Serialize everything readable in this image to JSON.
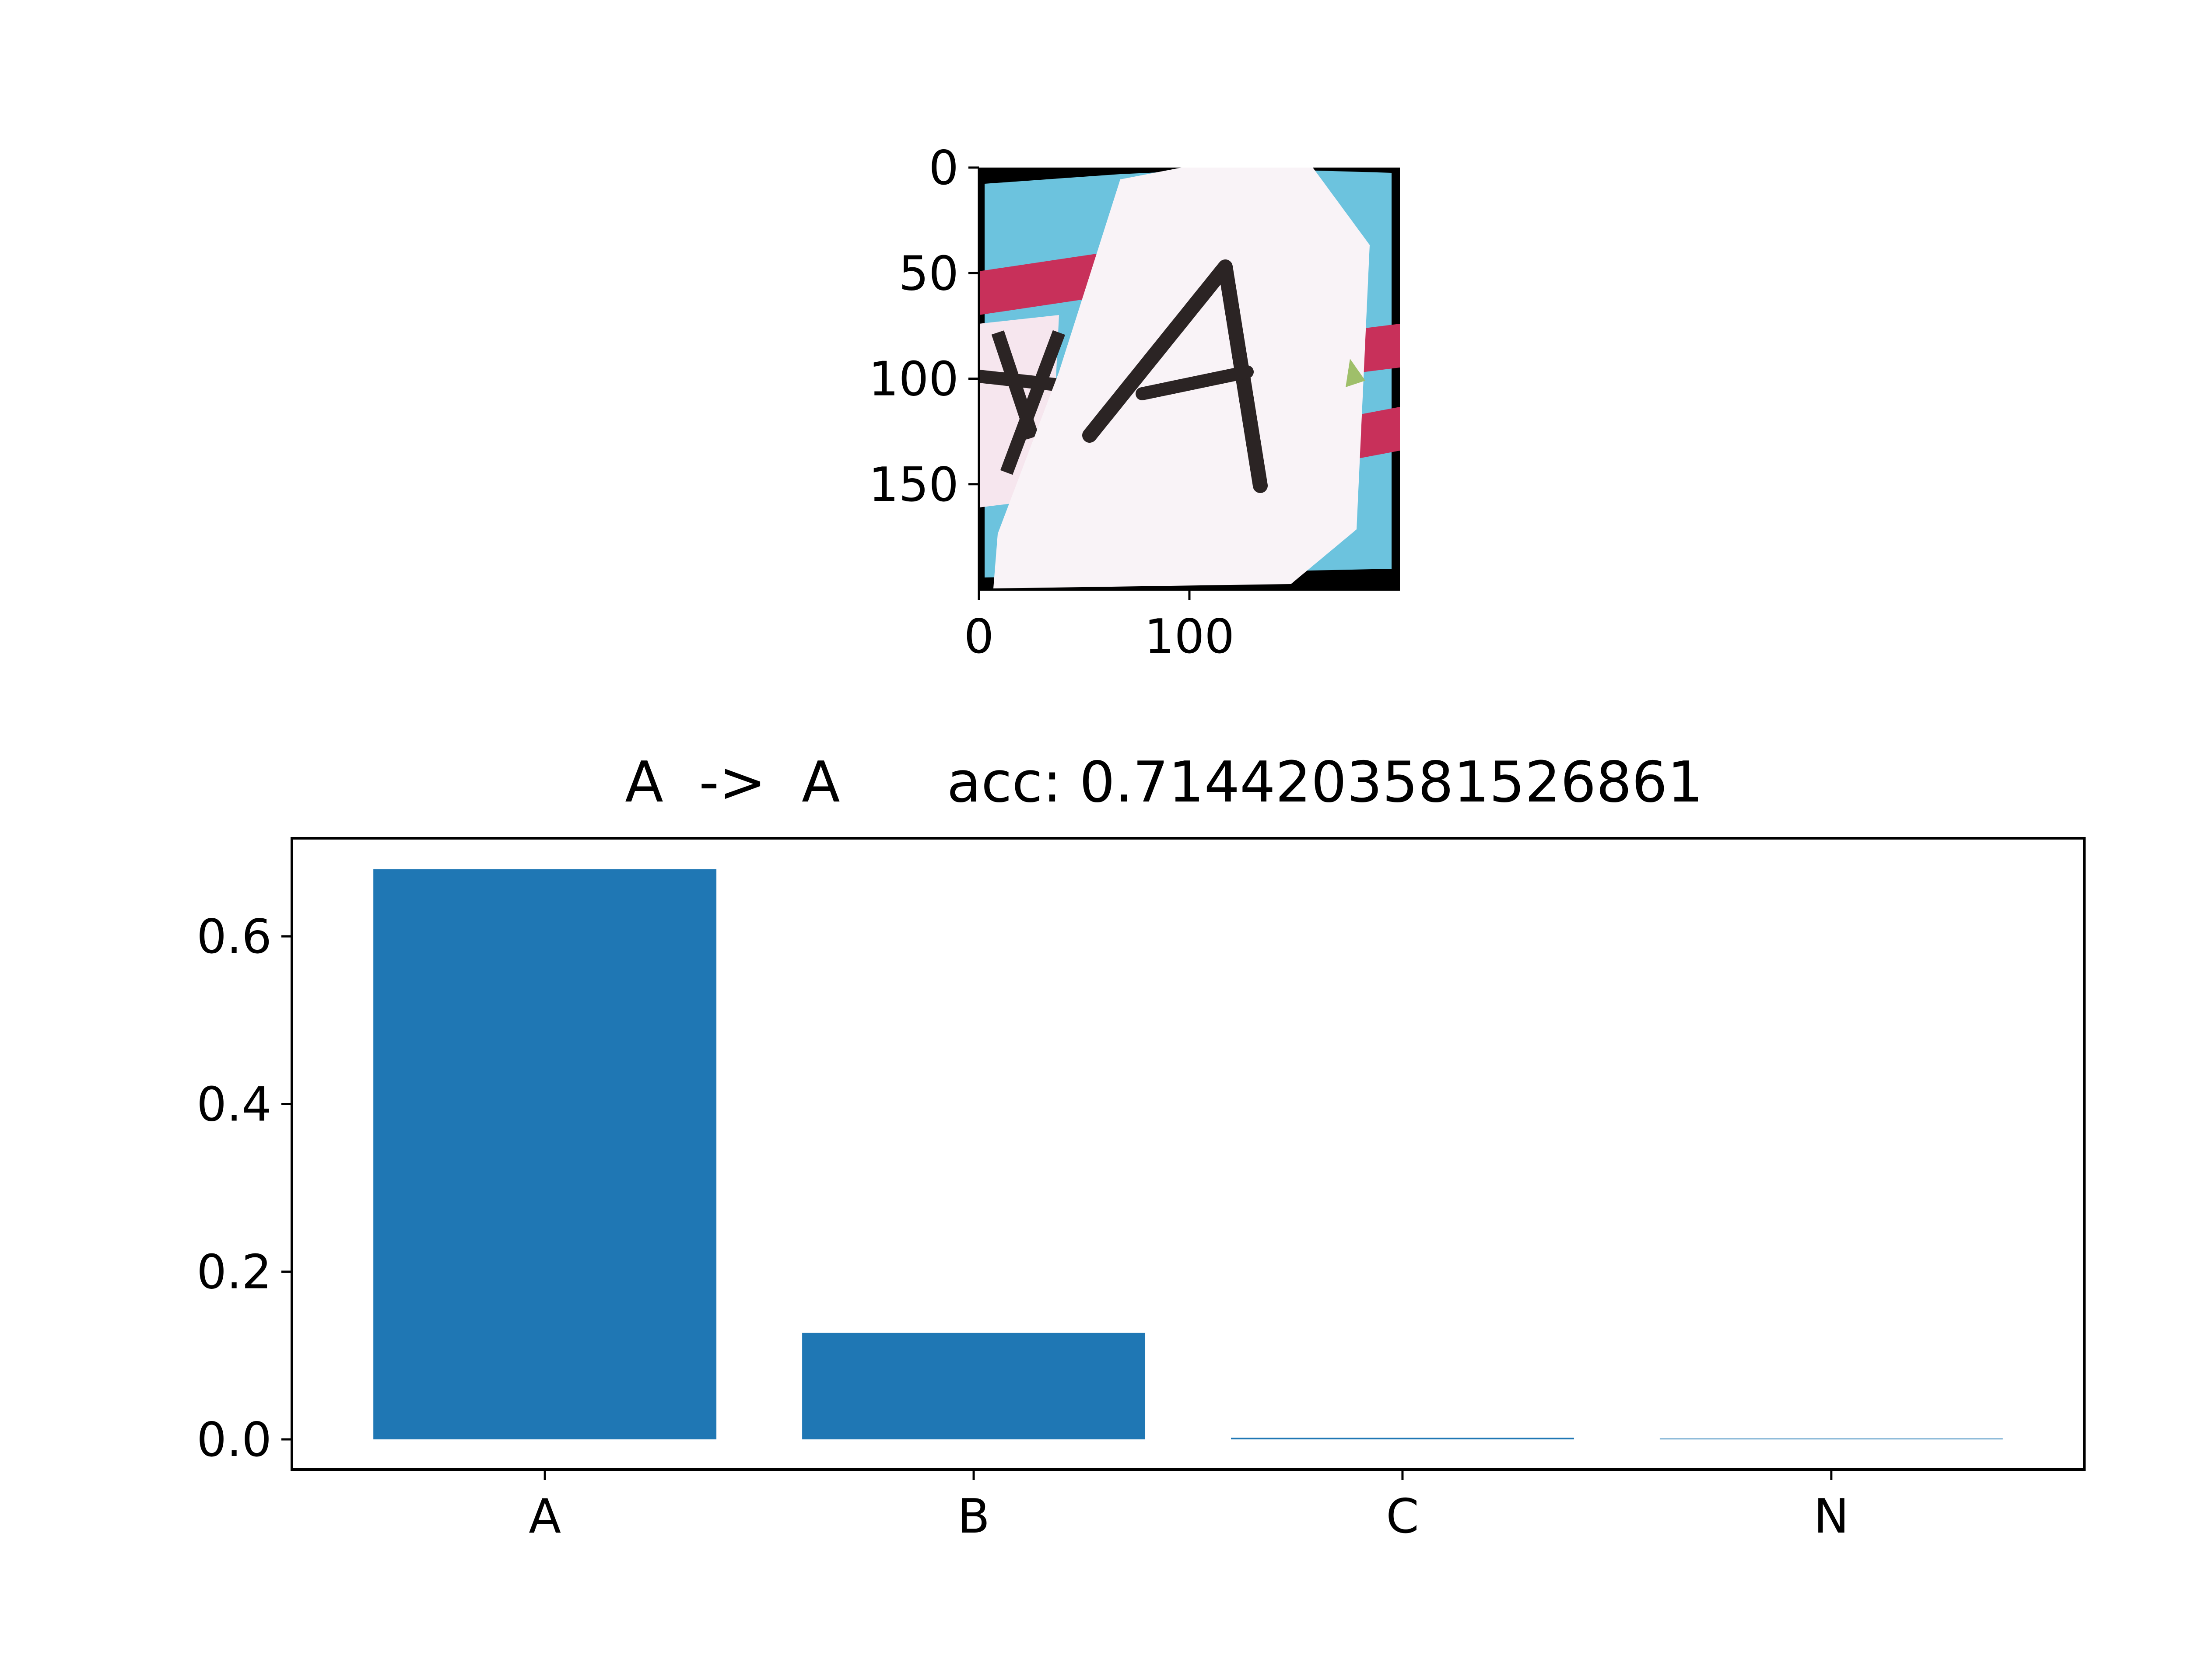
{
  "chart_data": [
    {
      "type": "image",
      "title": "",
      "xlim": [
        0,
        200
      ],
      "ylim": [
        200,
        0
      ],
      "xticks": [
        0,
        100
      ],
      "yticks": [
        0,
        50,
        100,
        150
      ],
      "xtick_labels": [
        "0",
        "100"
      ],
      "ytick_labels": [
        "0",
        "50",
        "100",
        "150"
      ],
      "image_content": "photo crop of a tilted white card bearing a handwritten letter",
      "image_letter": "A",
      "colors": {
        "card": "#f9f3f7",
        "sky": "#6cc3de",
        "stripe": "#c8305a",
        "ink": "#2b2424",
        "border": "#000000"
      }
    },
    {
      "type": "bar",
      "title": "A  ->  A      acc: 0.7144203581526861",
      "xlabel": "",
      "ylabel": "",
      "categories": [
        "A",
        "B",
        "C",
        "N"
      ],
      "values": [
        0.68,
        0.127,
        0.002,
        0.001
      ],
      "ylim": [
        -0.036,
        0.717
      ],
      "yticks": [
        0.0,
        0.2,
        0.4,
        0.6
      ],
      "ytick_labels": [
        "0.0",
        "0.2",
        "0.4",
        "0.6"
      ],
      "grid": false,
      "colors": {
        "bar": "#1f77b4"
      }
    }
  ]
}
